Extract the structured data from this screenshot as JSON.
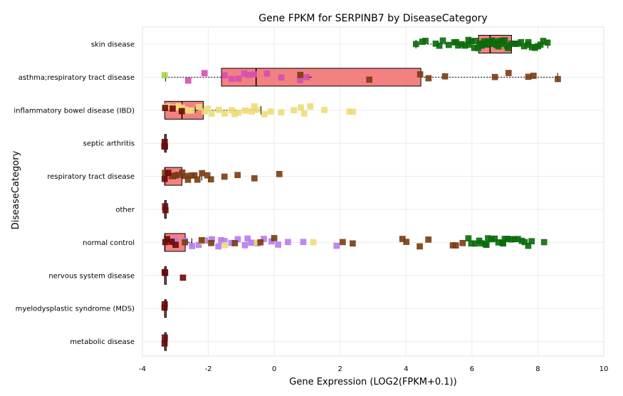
{
  "chart_data": {
    "type": "boxplot",
    "title": "Gene FPKM for SERPINB7 by DiseaseCategory",
    "xlabel": "Gene Expression (LOG2(FPKM+0.1))",
    "ylabel": "DiseaseCategory",
    "xlim": [
      -4,
      10
    ],
    "x_ticks": [
      -4,
      -2,
      0,
      2,
      4,
      6,
      8,
      10
    ],
    "grid": true,
    "colors": {
      "box_fill": "#f26b6b",
      "box_stroke": "#000000",
      "skin": "#0b6b0b",
      "asthma": "#d44fb3",
      "ibd": "#eedc78",
      "resp": "#7a3c12",
      "normal_purple": "#b77bf0",
      "normal_brown": "#7a3c12",
      "normal_green": "#0b6b0b",
      "dark": "#6b0a0a",
      "lime": "#a8d64a"
    },
    "categories": [
      "skin disease",
      "asthma;respiratory tract disease",
      "inflammatory bowel disease (IBD)",
      "septic arthritis",
      "respiratory tract disease",
      "other",
      "normal control",
      "nervous system disease",
      "myelodysplastic syndrome (MDS)",
      "metabolic disease"
    ],
    "boxes": [
      {
        "category": "skin disease",
        "min": 4.3,
        "q1": 6.2,
        "median": 6.55,
        "q3": 7.2,
        "max": 8.3,
        "mean": 6.6
      },
      {
        "category": "asthma;respiratory tract disease",
        "min": -3.3,
        "q1": -1.6,
        "median": -0.55,
        "q3": 4.45,
        "max": 8.6,
        "mean": 1.05
      },
      {
        "category": "inflammatory bowel disease (IBD)",
        "min": -3.32,
        "q1": -3.32,
        "median": -2.8,
        "q3": -2.15,
        "max": -0.4,
        "mean": -2.4
      },
      {
        "category": "septic arthritis",
        "min": -3.32,
        "q1": -3.32,
        "median": -3.32,
        "q3": -3.32,
        "max": -3.32,
        "mean": -3.32
      },
      {
        "category": "respiratory tract disease",
        "min": -3.32,
        "q1": -3.32,
        "median": -3.32,
        "q3": -2.8,
        "max": -2.2,
        "mean": -3.0
      },
      {
        "category": "other",
        "min": -3.32,
        "q1": -3.32,
        "median": -3.32,
        "q3": -3.32,
        "max": -3.32,
        "mean": -3.32
      },
      {
        "category": "normal control",
        "min": -3.32,
        "q1": -3.32,
        "median": -3.32,
        "q3": -2.7,
        "max": -2.5,
        "mean": -3.1
      },
      {
        "category": "nervous system disease",
        "min": -3.32,
        "q1": -3.32,
        "median": -3.32,
        "q3": -3.32,
        "max": -3.32,
        "mean": -3.32
      },
      {
        "category": "myelodysplastic syndrome (MDS)",
        "min": -3.32,
        "q1": -3.32,
        "median": -3.32,
        "q3": -3.32,
        "max": -3.32,
        "mean": -3.32
      },
      {
        "category": "metabolic disease",
        "min": -3.32,
        "q1": -3.32,
        "median": -3.32,
        "q3": -3.32,
        "max": -3.32,
        "mean": -3.32
      }
    ],
    "points": [
      {
        "category": "skin disease",
        "color": "skin",
        "x": [
          4.3,
          4.6,
          4.9,
          5.1,
          5.3,
          5.45,
          5.6,
          5.7,
          5.8,
          5.9,
          6.0,
          6.05,
          6.1,
          6.2,
          6.25,
          6.3,
          6.35,
          6.4,
          6.45,
          6.5,
          6.55,
          6.6,
          6.65,
          6.7,
          6.75,
          6.8,
          6.85,
          6.9,
          7.0,
          7.05,
          7.1,
          7.2,
          7.3,
          7.4,
          7.5,
          7.6,
          7.7,
          7.8,
          7.9,
          8.0,
          8.1,
          8.3,
          4.5,
          5.0,
          5.5,
          5.9,
          6.3,
          6.9,
          7.3,
          7.7,
          8.15
        ]
      },
      {
        "category": "asthma;respiratory tract disease",
        "color": "asthma",
        "x": [
          -2.6,
          -2.1,
          -1.3,
          -1.1,
          -0.8,
          -0.6,
          -0.2,
          0.2,
          0.8,
          1.0,
          -1.5,
          -0.9
        ]
      },
      {
        "category": "asthma;respiratory tract disease",
        "color": "resp",
        "x": [
          0.8,
          2.9,
          4.45,
          4.7,
          5.2,
          6.7,
          7.1,
          7.7,
          7.85,
          8.6
        ]
      },
      {
        "category": "asthma;respiratory tract disease",
        "color": "lime",
        "x": [
          -3.32
        ]
      },
      {
        "category": "inflammatory bowel disease (IBD)",
        "color": "ibd",
        "x": [
          -3.3,
          -3.2,
          -3.0,
          -2.9,
          -2.7,
          -2.6,
          -2.5,
          -2.3,
          -2.1,
          -1.9,
          -1.7,
          -1.5,
          -1.3,
          -1.1,
          -0.9,
          -0.7,
          -0.5,
          -0.3,
          -0.1,
          0.2,
          0.6,
          0.9,
          1.1,
          1.5,
          2.3,
          2.4,
          -2.8,
          -2.0,
          -1.2,
          -0.6,
          0.8
        ]
      },
      {
        "category": "inflammatory bowel disease (IBD)",
        "color": "dark",
        "x": [
          -3.32,
          -3.1,
          -2.8
        ]
      },
      {
        "category": "septic arthritis",
        "color": "dark",
        "x": [
          -3.32,
          -3.32,
          -3.32
        ]
      },
      {
        "category": "respiratory tract disease",
        "color": "resp",
        "x": [
          -3.3,
          -3.1,
          -3.0,
          -2.9,
          -2.8,
          -2.7,
          -2.6,
          -2.5,
          -2.4,
          -2.2,
          -1.9,
          -1.5,
          -1.1,
          -0.6,
          0.15,
          -2.35,
          -2.05
        ]
      },
      {
        "category": "respiratory tract disease",
        "color": "dark",
        "x": [
          -3.32,
          -3.2
        ]
      },
      {
        "category": "other",
        "color": "dark",
        "x": [
          -3.32,
          -3.32
        ]
      },
      {
        "category": "normal control",
        "color": "normal_purple",
        "x": [
          -3.0,
          -2.7,
          -2.5,
          -2.3,
          -2.1,
          -1.9,
          -1.7,
          -1.5,
          -1.3,
          -1.1,
          -0.9,
          -0.7,
          -0.5,
          -0.3,
          -0.1,
          0.1,
          0.4,
          0.9,
          1.9,
          -1.6,
          -0.8
        ]
      },
      {
        "category": "normal control",
        "color": "ibd",
        "x": [
          -2.2,
          -1.5,
          -0.5,
          1.2
        ]
      },
      {
        "category": "normal control",
        "color": "normal_brown",
        "x": [
          -2.7,
          -2.2,
          -1.9,
          -1.2,
          -0.4,
          0.0,
          2.1,
          2.4,
          3.9,
          4.0,
          4.4,
          4.7,
          5.4,
          5.5,
          5.7
        ]
      },
      {
        "category": "normal control",
        "color": "normal_green",
        "x": [
          5.9,
          6.0,
          6.1,
          6.2,
          6.3,
          6.4,
          6.5,
          6.6,
          6.7,
          6.8,
          6.9,
          7.0,
          7.1,
          7.2,
          7.3,
          7.4,
          7.5,
          7.6,
          7.7,
          7.8,
          8.2,
          6.45,
          6.95
        ]
      },
      {
        "category": "normal control",
        "color": "dark",
        "x": [
          -3.32,
          -3.25,
          -3.1,
          -3.0
        ]
      },
      {
        "category": "nervous system disease",
        "color": "dark",
        "x": [
          -3.32,
          -3.32,
          -2.75
        ]
      },
      {
        "category": "myelodysplastic syndrome (MDS)",
        "color": "dark",
        "x": [
          -3.32,
          -3.32
        ]
      },
      {
        "category": "metabolic disease",
        "color": "dark",
        "x": [
          -3.32,
          -3.32
        ]
      }
    ]
  }
}
